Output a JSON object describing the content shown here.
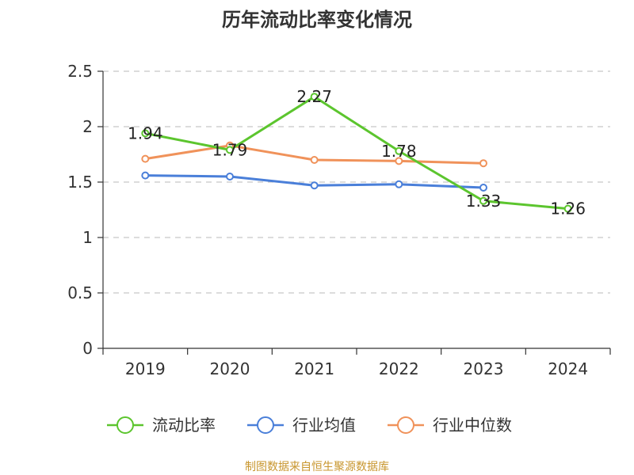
{
  "chart_data": {
    "type": "line",
    "title": "历年流动比率变化情况",
    "categories": [
      "2019",
      "2020",
      "2021",
      "2022",
      "2023",
      "2024"
    ],
    "ylim": [
      0,
      2.5
    ],
    "yticks": [
      "0",
      "0.5",
      "1",
      "1.5",
      "2",
      "2.5"
    ],
    "grid": true,
    "legend_position": "bottom",
    "series": [
      {
        "name": "流动比率",
        "color": "#5cc52e",
        "values": [
          1.94,
          1.79,
          2.27,
          1.78,
          1.33,
          1.26
        ],
        "labels": [
          "1.94",
          "1.79",
          "2.27",
          "1.78",
          "1.33",
          "1.26"
        ]
      },
      {
        "name": "行业均值",
        "color": "#4a7fd9",
        "values": [
          1.56,
          1.55,
          1.47,
          1.48,
          1.45,
          null
        ]
      },
      {
        "name": "行业中位数",
        "color": "#f0925a",
        "values": [
          1.71,
          1.83,
          1.7,
          1.69,
          1.67,
          null
        ]
      }
    ],
    "source": "制图数据来自恒生聚源数据库",
    "source_color": "#c8962e"
  }
}
